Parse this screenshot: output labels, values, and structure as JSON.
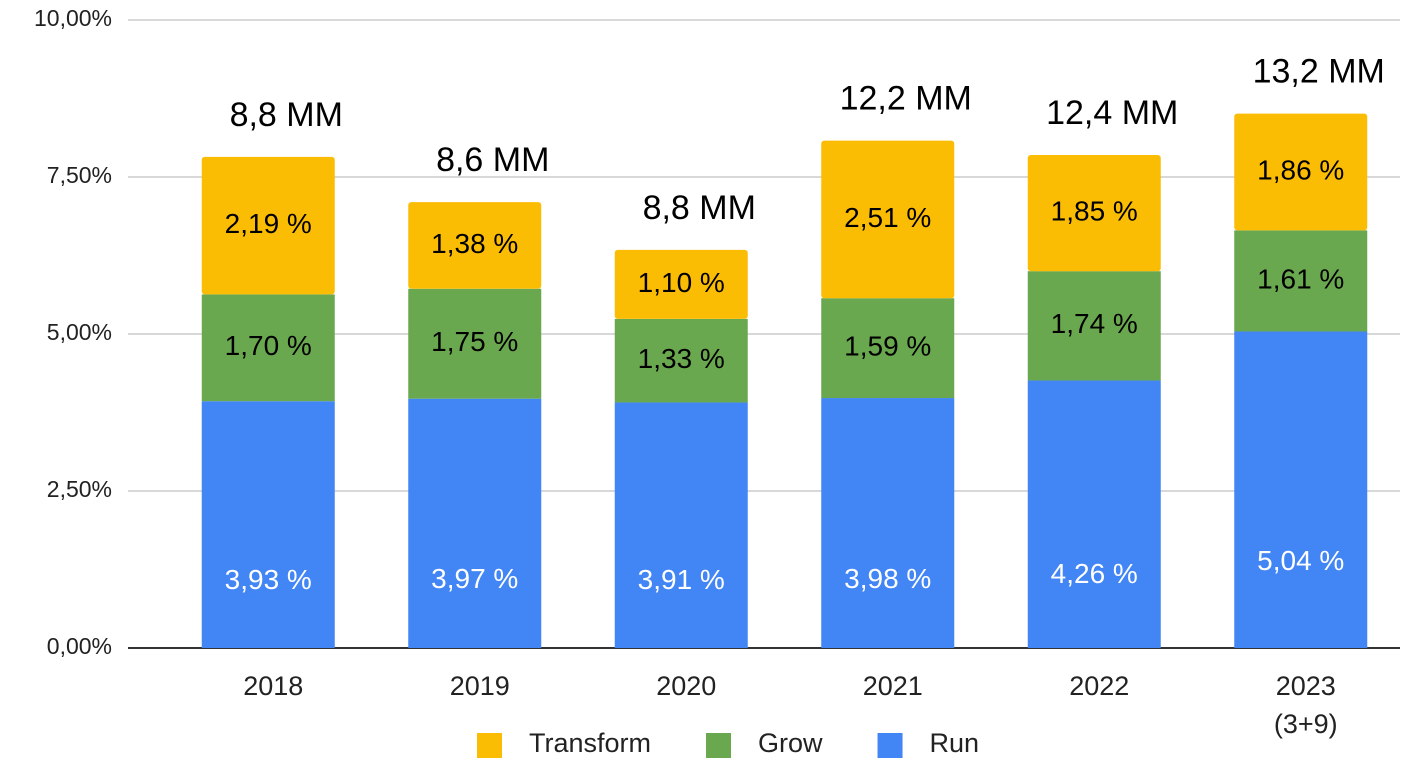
{
  "chart_data": {
    "type": "stacked_bar",
    "categories": [
      "2018",
      "2019",
      "2020",
      "2021",
      "2022",
      "2023\n(3+9)"
    ],
    "annotations": [
      "8,8 MM",
      "8,6 MM",
      "8,8 MM",
      "12,2 MM",
      "12,4 MM",
      "13,2 MM"
    ],
    "series": [
      {
        "name": "Run",
        "color": "#4285f4",
        "label_color": "#ffffff",
        "values": [
          3.93,
          3.97,
          3.91,
          3.98,
          4.26,
          5.04
        ],
        "value_labels": [
          "3,93 %",
          "3,97 %",
          "3,91 %",
          "3,98 %",
          "4,26 %",
          "5,04 %"
        ]
      },
      {
        "name": "Grow",
        "color": "#6aa84f",
        "label_color": "#000000",
        "values": [
          1.7,
          1.75,
          1.33,
          1.59,
          1.74,
          1.61
        ],
        "value_labels": [
          "1,70 %",
          "1,75 %",
          "1,33 %",
          "1,59 %",
          "1,74 %",
          "1,61 %"
        ]
      },
      {
        "name": "Transform",
        "color": "#fbbc04",
        "label_color": "#000000",
        "values": [
          2.19,
          1.38,
          1.1,
          2.51,
          1.85,
          1.86
        ],
        "value_labels": [
          "2,19 %",
          "1,38 %",
          "1,10 %",
          "2,51 %",
          "1,85 %",
          "1,86 %"
        ]
      }
    ],
    "ylim": [
      0,
      10
    ],
    "yticks": [
      {
        "value": 0,
        "label": "0,00%"
      },
      {
        "value": 2.5,
        "label": "2,50%"
      },
      {
        "value": 5,
        "label": "5,00%"
      },
      {
        "value": 7.5,
        "label": "7,50%"
      },
      {
        "value": 10,
        "label": "10,00%"
      }
    ],
    "grid": true,
    "legend": "bottom"
  }
}
